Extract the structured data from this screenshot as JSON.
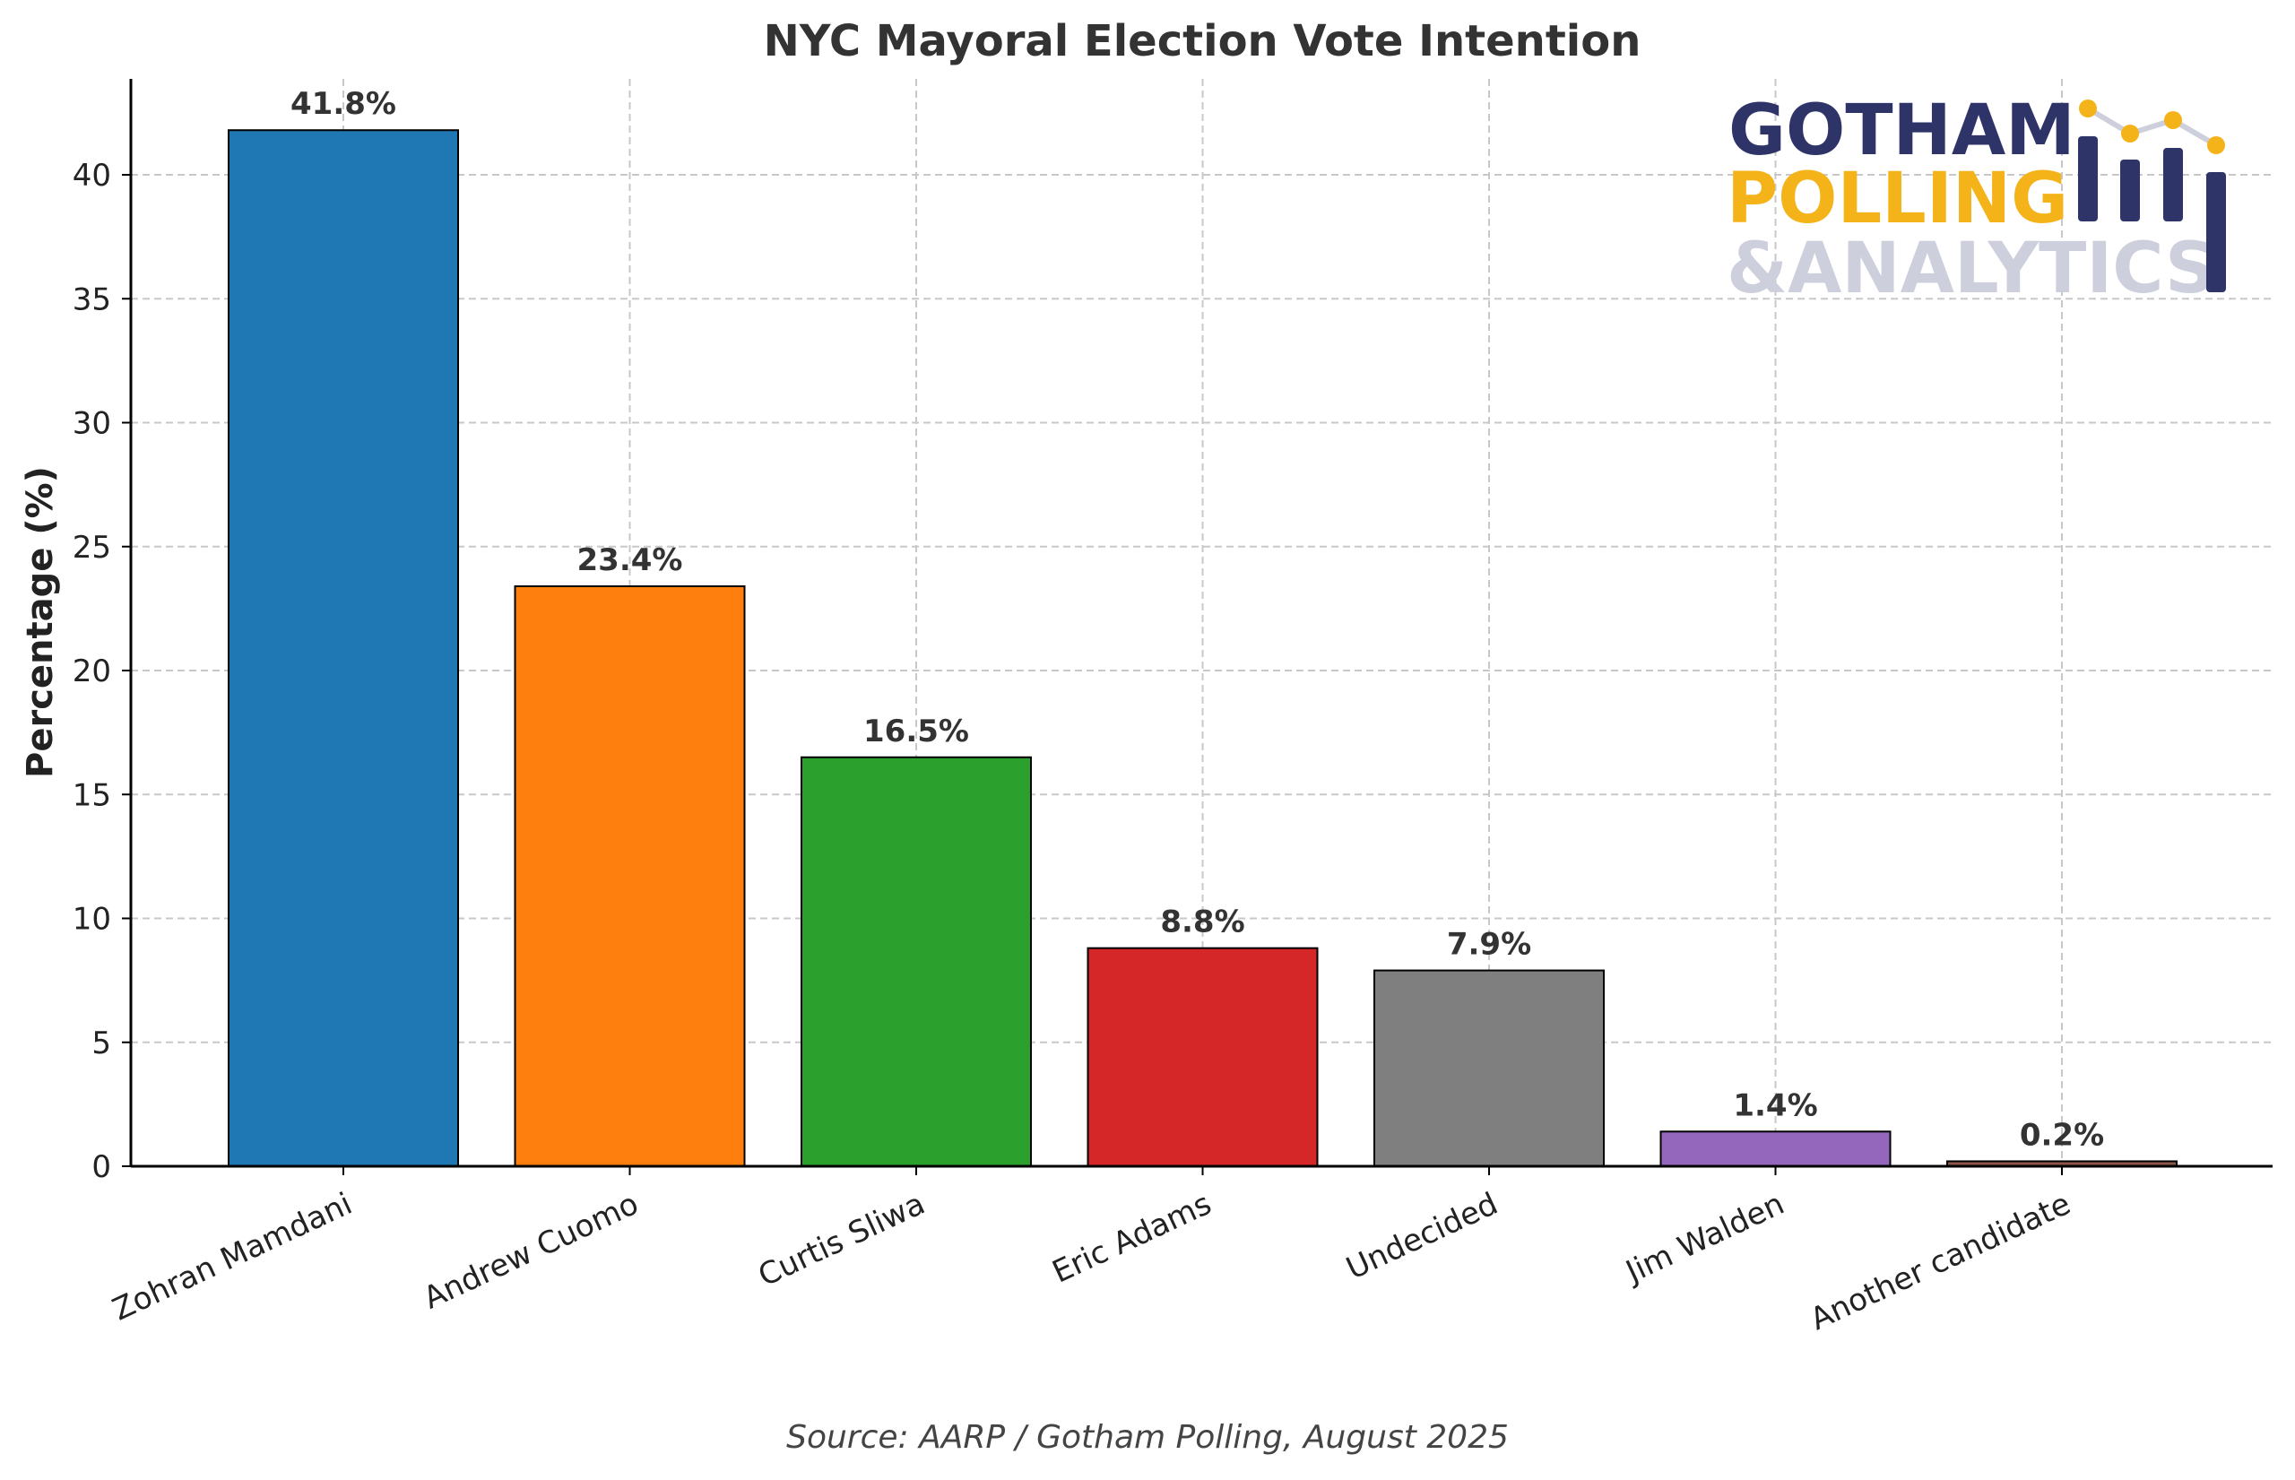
{
  "chart_data": {
    "type": "bar",
    "title": "NYC Mayoral Election Vote Intention",
    "xlabel": "",
    "ylabel": "Percentage (%)",
    "ylim": [
      0,
      44
    ],
    "yticks": [
      0,
      5,
      10,
      15,
      20,
      25,
      30,
      35,
      40
    ],
    "grid": true,
    "categories": [
      "Zohran Mamdani",
      "Andrew Cuomo",
      "Curtis Sliwa",
      "Eric Adams",
      "Undecided",
      "Jim Walden",
      "Another candidate"
    ],
    "values": [
      41.8,
      23.4,
      16.5,
      8.8,
      7.9,
      1.4,
      0.2
    ],
    "data_labels": [
      "41.8%",
      "23.4%",
      "16.5%",
      "8.8%",
      "7.9%",
      "1.4%",
      "0.2%"
    ],
    "colors": [
      "#1f77b4",
      "#ff7f0e",
      "#2ca02c",
      "#d62728",
      "#7f7f7f",
      "#9467bd",
      "#8c564b"
    ],
    "source": "Source: AARP / Gotham Polling, August 2025"
  },
  "logo": {
    "line1": "GOTHAM",
    "line2": "POLLING",
    "line3": "&ANALYTICS",
    "colors": {
      "navy": "#2e3468",
      "gold": "#f5b31a",
      "gray": "#cdd0dc"
    }
  }
}
